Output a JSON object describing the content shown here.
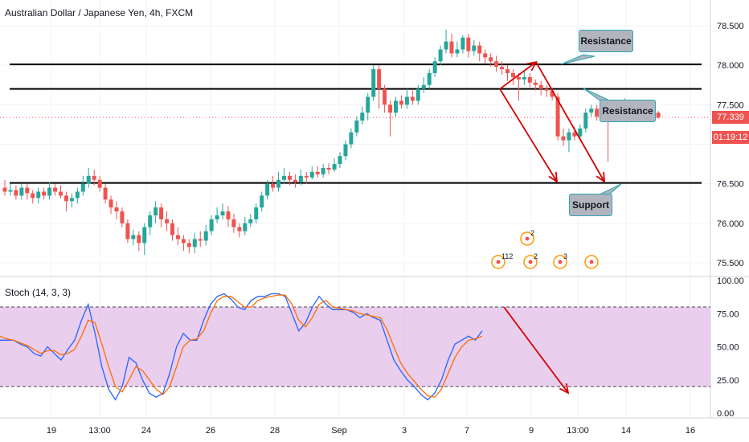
{
  "header": {
    "title": "Australian Dollar / Japanese Yen, 4h, FXCM",
    "indicator_label": "Stoch (14, 3, 3)"
  },
  "annotations": {
    "resistance_1": "Resistance",
    "resistance_2": "Resistance",
    "support": "Support"
  },
  "price_tag": {
    "value": "77.339",
    "timer": "01:19:12",
    "color": "#ef5350"
  },
  "events": [
    {
      "label": "112",
      "row": "bottom"
    },
    {
      "label": "2",
      "row": "top"
    },
    {
      "label": "2",
      "row": "bottom"
    },
    {
      "label": "3",
      "row": "bottom"
    },
    {
      "label": "",
      "row": "bottom"
    }
  ],
  "colors": {
    "up": "#26a69a",
    "down": "#ef5350",
    "k_line": "#2962ff",
    "d_line": "#ff6d00",
    "stoch_band": "#e1bee7",
    "arrow": "#d50000",
    "callout_bg": "#b2b5be",
    "callout_border": "#2aa6b3"
  },
  "chart_data": [
    {
      "type": "candlestick",
      "title": "Australian Dollar / Japanese Yen, 4h, FXCM",
      "x_labels": [
        "19",
        "13:00",
        "24",
        "26",
        "28",
        "Sep",
        "3",
        "7",
        "9",
        "13:00",
        "14",
        "16"
      ],
      "y_ticks": [
        "78.500",
        "78.000",
        "77.500",
        "76.500",
        "76.000",
        "75.500"
      ],
      "ylim": [
        75.3,
        78.7
      ],
      "last_price": 77.339,
      "horizontal_lines": [
        {
          "label": "Resistance",
          "price": 78.01
        },
        {
          "label": "Resistance",
          "price": 77.7
        },
        {
          "label": "Support",
          "price": 76.51
        }
      ],
      "candles": [
        [
          76.45,
          76.4,
          76.55,
          76.35
        ],
        [
          76.4,
          76.42,
          76.5,
          76.35
        ],
        [
          76.42,
          76.35,
          76.48,
          76.3
        ],
        [
          76.35,
          76.45,
          76.5,
          76.3
        ],
        [
          76.45,
          76.38,
          76.5,
          76.3
        ],
        [
          76.38,
          76.32,
          76.42,
          76.25
        ],
        [
          76.32,
          76.4,
          76.45,
          76.25
        ],
        [
          76.4,
          76.35,
          76.45,
          76.3
        ],
        [
          76.35,
          76.45,
          76.52,
          76.3
        ],
        [
          76.45,
          76.4,
          76.5,
          76.35
        ],
        [
          76.4,
          76.35,
          76.48,
          76.32
        ],
        [
          76.35,
          76.28,
          76.4,
          76.15
        ],
        [
          76.28,
          76.32,
          76.38,
          76.2
        ],
        [
          76.32,
          76.4,
          76.45,
          76.25
        ],
        [
          76.4,
          76.5,
          76.6,
          76.35
        ],
        [
          76.5,
          76.6,
          76.7,
          76.45
        ],
        [
          76.6,
          76.55,
          76.68,
          76.48
        ],
        [
          76.55,
          76.45,
          76.6,
          76.4
        ],
        [
          76.45,
          76.3,
          76.5,
          76.25
        ],
        [
          76.3,
          76.2,
          76.35,
          76.12
        ],
        [
          76.2,
          76.15,
          76.28,
          76.05
        ],
        [
          76.15,
          76.0,
          76.2,
          75.95
        ],
        [
          76.0,
          75.8,
          76.05,
          75.75
        ],
        [
          75.8,
          75.85,
          75.92,
          75.72
        ],
        [
          75.85,
          75.75,
          75.9,
          75.65
        ],
        [
          75.75,
          75.95,
          76.0,
          75.6
        ],
        [
          75.95,
          76.1,
          76.15,
          75.85
        ],
        [
          76.1,
          76.2,
          76.28,
          76.0
        ],
        [
          76.2,
          76.05,
          76.25,
          75.95
        ],
        [
          76.05,
          76.0,
          76.15,
          75.9
        ],
        [
          76.0,
          75.85,
          76.05,
          75.78
        ],
        [
          75.85,
          75.8,
          75.95,
          75.72
        ],
        [
          75.8,
          75.75,
          75.85,
          75.65
        ],
        [
          75.75,
          75.7,
          75.8,
          75.62
        ],
        [
          75.7,
          75.8,
          75.88,
          75.62
        ],
        [
          75.8,
          75.78,
          75.9,
          75.7
        ],
        [
          75.78,
          75.9,
          75.98,
          75.72
        ],
        [
          75.9,
          76.05,
          76.1,
          75.85
        ],
        [
          76.05,
          76.1,
          76.2,
          76.0
        ],
        [
          76.1,
          76.15,
          76.25,
          76.05
        ],
        [
          76.15,
          76.05,
          76.22,
          75.95
        ],
        [
          76.05,
          75.95,
          76.12,
          75.88
        ],
        [
          75.95,
          75.9,
          76.0,
          75.82
        ],
        [
          75.9,
          76.0,
          76.08,
          75.85
        ],
        [
          76.0,
          76.05,
          76.12,
          75.95
        ],
        [
          76.05,
          76.2,
          76.25,
          76.0
        ],
        [
          76.2,
          76.35,
          76.4,
          76.15
        ],
        [
          76.35,
          76.5,
          76.55,
          76.3
        ],
        [
          76.5,
          76.45,
          76.6,
          76.4
        ],
        [
          76.45,
          76.55,
          76.65,
          76.4
        ],
        [
          76.55,
          76.6,
          76.7,
          76.5
        ],
        [
          76.6,
          76.55,
          76.65,
          76.48
        ],
        [
          76.55,
          76.52,
          76.62,
          76.45
        ],
        [
          76.52,
          76.6,
          76.68,
          76.48
        ],
        [
          76.6,
          76.58,
          76.65,
          76.5
        ],
        [
          76.58,
          76.65,
          76.72,
          76.55
        ],
        [
          76.65,
          76.62,
          76.72,
          76.58
        ],
        [
          76.62,
          76.7,
          76.75,
          76.58
        ],
        [
          76.7,
          76.68,
          76.76,
          76.62
        ],
        [
          76.68,
          76.75,
          76.82,
          76.65
        ],
        [
          76.75,
          76.85,
          76.9,
          76.7
        ],
        [
          76.85,
          77.0,
          77.05,
          76.8
        ],
        [
          77.0,
          77.15,
          77.2,
          76.95
        ],
        [
          77.15,
          77.3,
          77.35,
          77.1
        ],
        [
          77.3,
          77.4,
          77.48,
          77.25
        ],
        [
          77.4,
          77.6,
          77.65,
          77.3
        ],
        [
          77.6,
          77.95,
          78.0,
          77.55
        ],
        [
          77.95,
          77.7,
          78.0,
          77.45
        ],
        [
          77.7,
          77.5,
          77.75,
          77.4
        ],
        [
          77.5,
          77.4,
          77.55,
          77.1
        ],
        [
          77.4,
          77.55,
          77.6,
          77.35
        ],
        [
          77.55,
          77.5,
          77.62,
          77.45
        ],
        [
          77.5,
          77.6,
          77.7,
          77.45
        ],
        [
          77.6,
          77.55,
          77.68,
          77.5
        ],
        [
          77.55,
          77.7,
          77.75,
          77.5
        ],
        [
          77.7,
          77.75,
          77.85,
          77.65
        ],
        [
          77.75,
          77.9,
          77.95,
          77.7
        ],
        [
          77.9,
          78.05,
          78.1,
          77.85
        ],
        [
          78.05,
          78.2,
          78.25,
          78.0
        ],
        [
          78.2,
          78.3,
          78.45,
          78.15
        ],
        [
          78.3,
          78.15,
          78.4,
          78.1
        ],
        [
          78.15,
          78.2,
          78.3,
          78.1
        ],
        [
          78.2,
          78.35,
          78.38,
          78.15
        ],
        [
          78.35,
          78.18,
          78.4,
          78.1
        ],
        [
          78.18,
          78.25,
          78.32,
          78.12
        ],
        [
          78.25,
          78.15,
          78.3,
          78.05
        ],
        [
          78.15,
          78.1,
          78.2,
          78.02
        ],
        [
          78.1,
          78.05,
          78.15,
          77.98
        ],
        [
          78.05,
          77.98,
          78.12,
          77.92
        ],
        [
          77.98,
          77.95,
          78.05,
          77.88
        ],
        [
          77.95,
          77.9,
          78.0,
          77.8
        ],
        [
          77.9,
          77.85,
          77.95,
          77.75
        ],
        [
          77.85,
          77.82,
          77.9,
          77.55
        ],
        [
          77.82,
          77.85,
          77.92,
          77.75
        ],
        [
          77.85,
          77.78,
          77.9,
          77.72
        ],
        [
          77.78,
          77.75,
          77.82,
          77.68
        ],
        [
          77.75,
          77.7,
          77.8,
          77.62
        ],
        [
          77.7,
          77.68,
          77.75,
          77.6
        ],
        [
          77.68,
          77.6,
          77.72,
          77.55
        ],
        [
          77.6,
          77.1,
          77.65,
          77.05
        ],
        [
          77.1,
          77.05,
          77.2,
          76.98
        ],
        [
          77.05,
          77.15,
          77.2,
          76.9
        ],
        [
          77.15,
          77.1,
          77.22,
          77.05
        ],
        [
          77.1,
          77.2,
          77.25,
          77.05
        ],
        [
          77.2,
          77.4,
          77.45,
          77.15
        ],
        [
          77.4,
          77.45,
          77.5,
          77.35
        ],
        [
          77.45,
          77.35,
          77.5,
          77.3
        ],
        [
          77.35,
          77.38,
          77.45,
          77.28
        ],
        [
          77.38,
          77.35,
          77.42,
          76.78
        ],
        [
          77.35,
          77.4,
          77.45,
          77.3
        ],
        [
          77.4,
          77.5,
          77.55,
          77.35
        ],
        [
          77.5,
          77.45,
          77.58,
          77.38
        ],
        [
          77.45,
          77.4,
          77.5,
          77.3
        ],
        [
          77.4,
          77.38,
          77.45,
          77.32
        ],
        [
          77.38,
          77.42,
          77.48,
          77.35
        ],
        [
          77.42,
          77.38,
          77.46,
          77.32
        ],
        [
          77.38,
          77.4,
          77.44,
          77.34
        ],
        [
          77.4,
          77.339,
          77.42,
          77.32
        ]
      ]
    },
    {
      "type": "line",
      "title": "Stoch (14, 3, 3)",
      "y_ticks": [
        "100.00",
        "75.00",
        "50.00",
        "25.00",
        "0.00"
      ],
      "ylim": [
        0,
        100
      ],
      "bands": [
        80,
        20
      ],
      "series": [
        {
          "key": "K",
          "values": [
            55,
            55,
            55,
            52,
            50,
            45,
            43,
            50,
            45,
            40,
            48,
            55,
            70,
            82,
            60,
            35,
            18,
            10,
            20,
            42,
            38,
            25,
            15,
            12,
            15,
            30,
            50,
            60,
            55,
            55,
            70,
            82,
            88,
            90,
            86,
            80,
            78,
            85,
            88,
            88,
            90,
            90,
            88,
            75,
            62,
            68,
            80,
            88,
            82,
            78,
            78,
            78,
            76,
            72,
            75,
            72,
            70,
            55,
            40,
            32,
            25,
            20,
            14,
            10,
            15,
            25,
            40,
            52,
            55,
            58,
            55,
            62
          ]
        },
        {
          "key": "D",
          "values": [
            58,
            56,
            55,
            53,
            51,
            48,
            45,
            47,
            47,
            44,
            45,
            48,
            58,
            70,
            68,
            52,
            35,
            20,
            16,
            25,
            35,
            32,
            25,
            18,
            14,
            20,
            35,
            50,
            55,
            56,
            62,
            75,
            85,
            88,
            88,
            84,
            80,
            80,
            85,
            87,
            88,
            89,
            89,
            82,
            70,
            65,
            72,
            82,
            85,
            80,
            79,
            78,
            77,
            75,
            74,
            73,
            72,
            63,
            50,
            38,
            30,
            24,
            18,
            13,
            12,
            18,
            30,
            42,
            50,
            55,
            56,
            58
          ]
        }
      ]
    }
  ]
}
